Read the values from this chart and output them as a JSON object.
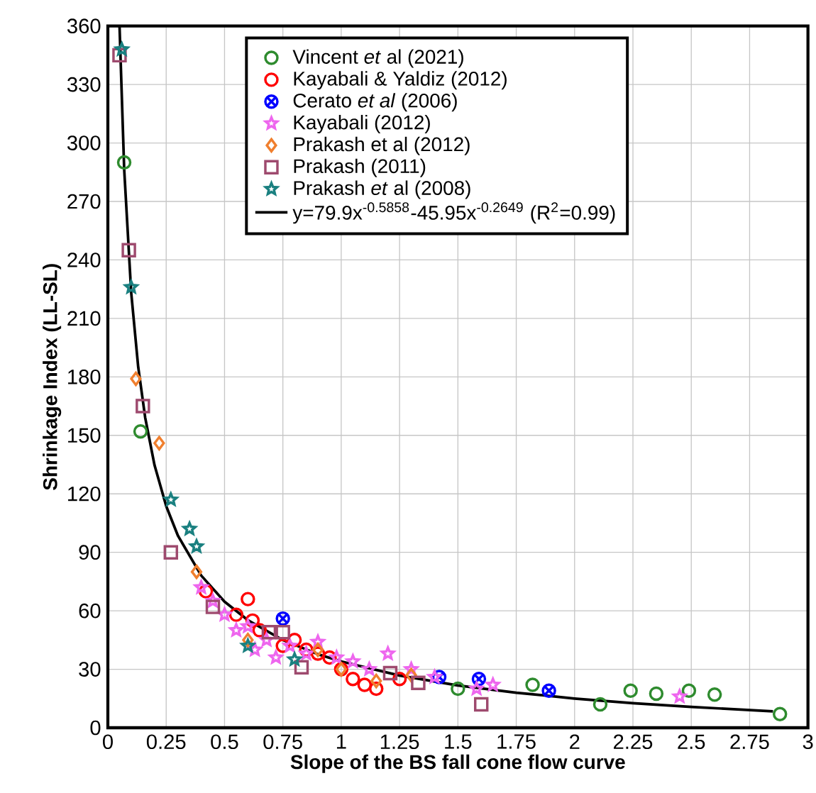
{
  "chart_data": {
    "type": "scatter",
    "xlabel": "Slope of the BS fall cone flow curve",
    "ylabel": "Shrinkage Index (LL-SL)",
    "xlim": [
      0,
      3
    ],
    "ylim": [
      0,
      360
    ],
    "xticks": [
      0,
      0.25,
      0.5,
      0.75,
      1,
      1.25,
      1.5,
      1.75,
      2,
      2.25,
      2.5,
      2.75,
      3
    ],
    "yticks": [
      0,
      30,
      60,
      90,
      120,
      150,
      180,
      210,
      240,
      270,
      300,
      330,
      360
    ],
    "grid": true,
    "legend": "top",
    "series": [
      {
        "name": "Vincent *et* al (2021)",
        "color": "#2e8b2e",
        "marker": "circle",
        "x": [
          0.07,
          0.14,
          1.5,
          1.82,
          2.11,
          2.24,
          2.35,
          2.49,
          2.6,
          2.88
        ],
        "values": [
          290,
          152,
          20,
          22,
          12,
          19,
          17.5,
          19,
          17,
          7
        ]
      },
      {
        "name": "Kayabali & Yaldiz (2012)",
        "color": "#ff0000",
        "marker": "circle",
        "x": [
          0.42,
          0.45,
          0.5,
          0.55,
          0.6,
          0.62,
          0.65,
          0.7,
          0.75,
          0.8,
          0.85,
          0.9,
          0.95,
          1.0,
          1.05,
          1.1,
          1.15,
          1.25
        ],
        "values": [
          70,
          null,
          null,
          58,
          66,
          55,
          50,
          null,
          42,
          45,
          40,
          38,
          36,
          30,
          25,
          22,
          20,
          25
        ]
      },
      {
        "name": "Cerato *et al* (2006)",
        "color": "#0000ff",
        "marker": "cross",
        "x": [
          0.75,
          1.42,
          1.59,
          1.89
        ],
        "values": [
          56,
          26,
          25,
          19
        ]
      },
      {
        "name": "Kayabali (2012)",
        "color": "#ee66ee",
        "marker": "star",
        "x": [
          0.4,
          0.45,
          0.5,
          0.55,
          0.6,
          0.63,
          0.68,
          0.72,
          0.78,
          0.85,
          0.9,
          0.98,
          1.05,
          1.12,
          1.2,
          1.3,
          1.4,
          1.58,
          1.65,
          2.45
        ],
        "values": [
          72,
          65,
          58,
          50,
          52,
          40,
          45,
          36,
          42,
          38,
          44,
          36,
          34,
          30,
          38,
          30,
          26,
          20,
          22,
          16
        ]
      },
      {
        "name": "Prakash et al (2012)",
        "color": "#f07f2e",
        "marker": "diamond",
        "x": [
          0.12,
          0.22,
          0.38,
          0.6,
          0.9,
          1.0,
          1.15,
          1.3
        ],
        "values": [
          179,
          146,
          80,
          45,
          40,
          30,
          24,
          27
        ]
      },
      {
        "name": "Prakash (2011)",
        "color": "#9e4a6e",
        "marker": "square",
        "x": [
          0.05,
          0.09,
          0.15,
          0.27,
          0.45,
          0.69,
          0.75,
          0.83,
          1.21,
          1.33,
          1.6
        ],
        "values": [
          345,
          245,
          165,
          90,
          62,
          49,
          49,
          31,
          28,
          23,
          12
        ]
      },
      {
        "name": "Prakash *et* al (2008)",
        "color": "#1a8080",
        "marker": "star",
        "x": [
          0.06,
          0.1,
          0.27,
          0.35,
          0.38,
          0.6,
          0.8
        ],
        "values": [
          348,
          226,
          117,
          102,
          93,
          42,
          35
        ]
      },
      {
        "name": "y=79.9x$^{-0.5858}$-45.95x$^{-0.2649}$ (R$^{2}$=0.99)",
        "type": "line",
        "color": "#000000",
        "marker": "none",
        "line_style": "solid",
        "x": [
          0.05,
          0.07,
          0.1,
          0.13,
          0.16,
          0.2,
          0.25,
          0.3,
          0.4,
          0.5,
          0.6,
          0.75,
          0.9,
          1.0,
          1.25,
          1.5,
          1.75,
          2.0,
          2.25,
          2.5,
          2.85
        ],
        "values": [
          360,
          286.5,
          223.3,
          185.1,
          159.1,
          134.7,
          113.7,
          98.6,
          78.1,
          64.7,
          55.2,
          45.0,
          37.7,
          34.0,
          26.8,
          21.7,
          18.0,
          15.0,
          12.6,
          10.7,
          8.4
        ]
      }
    ]
  }
}
